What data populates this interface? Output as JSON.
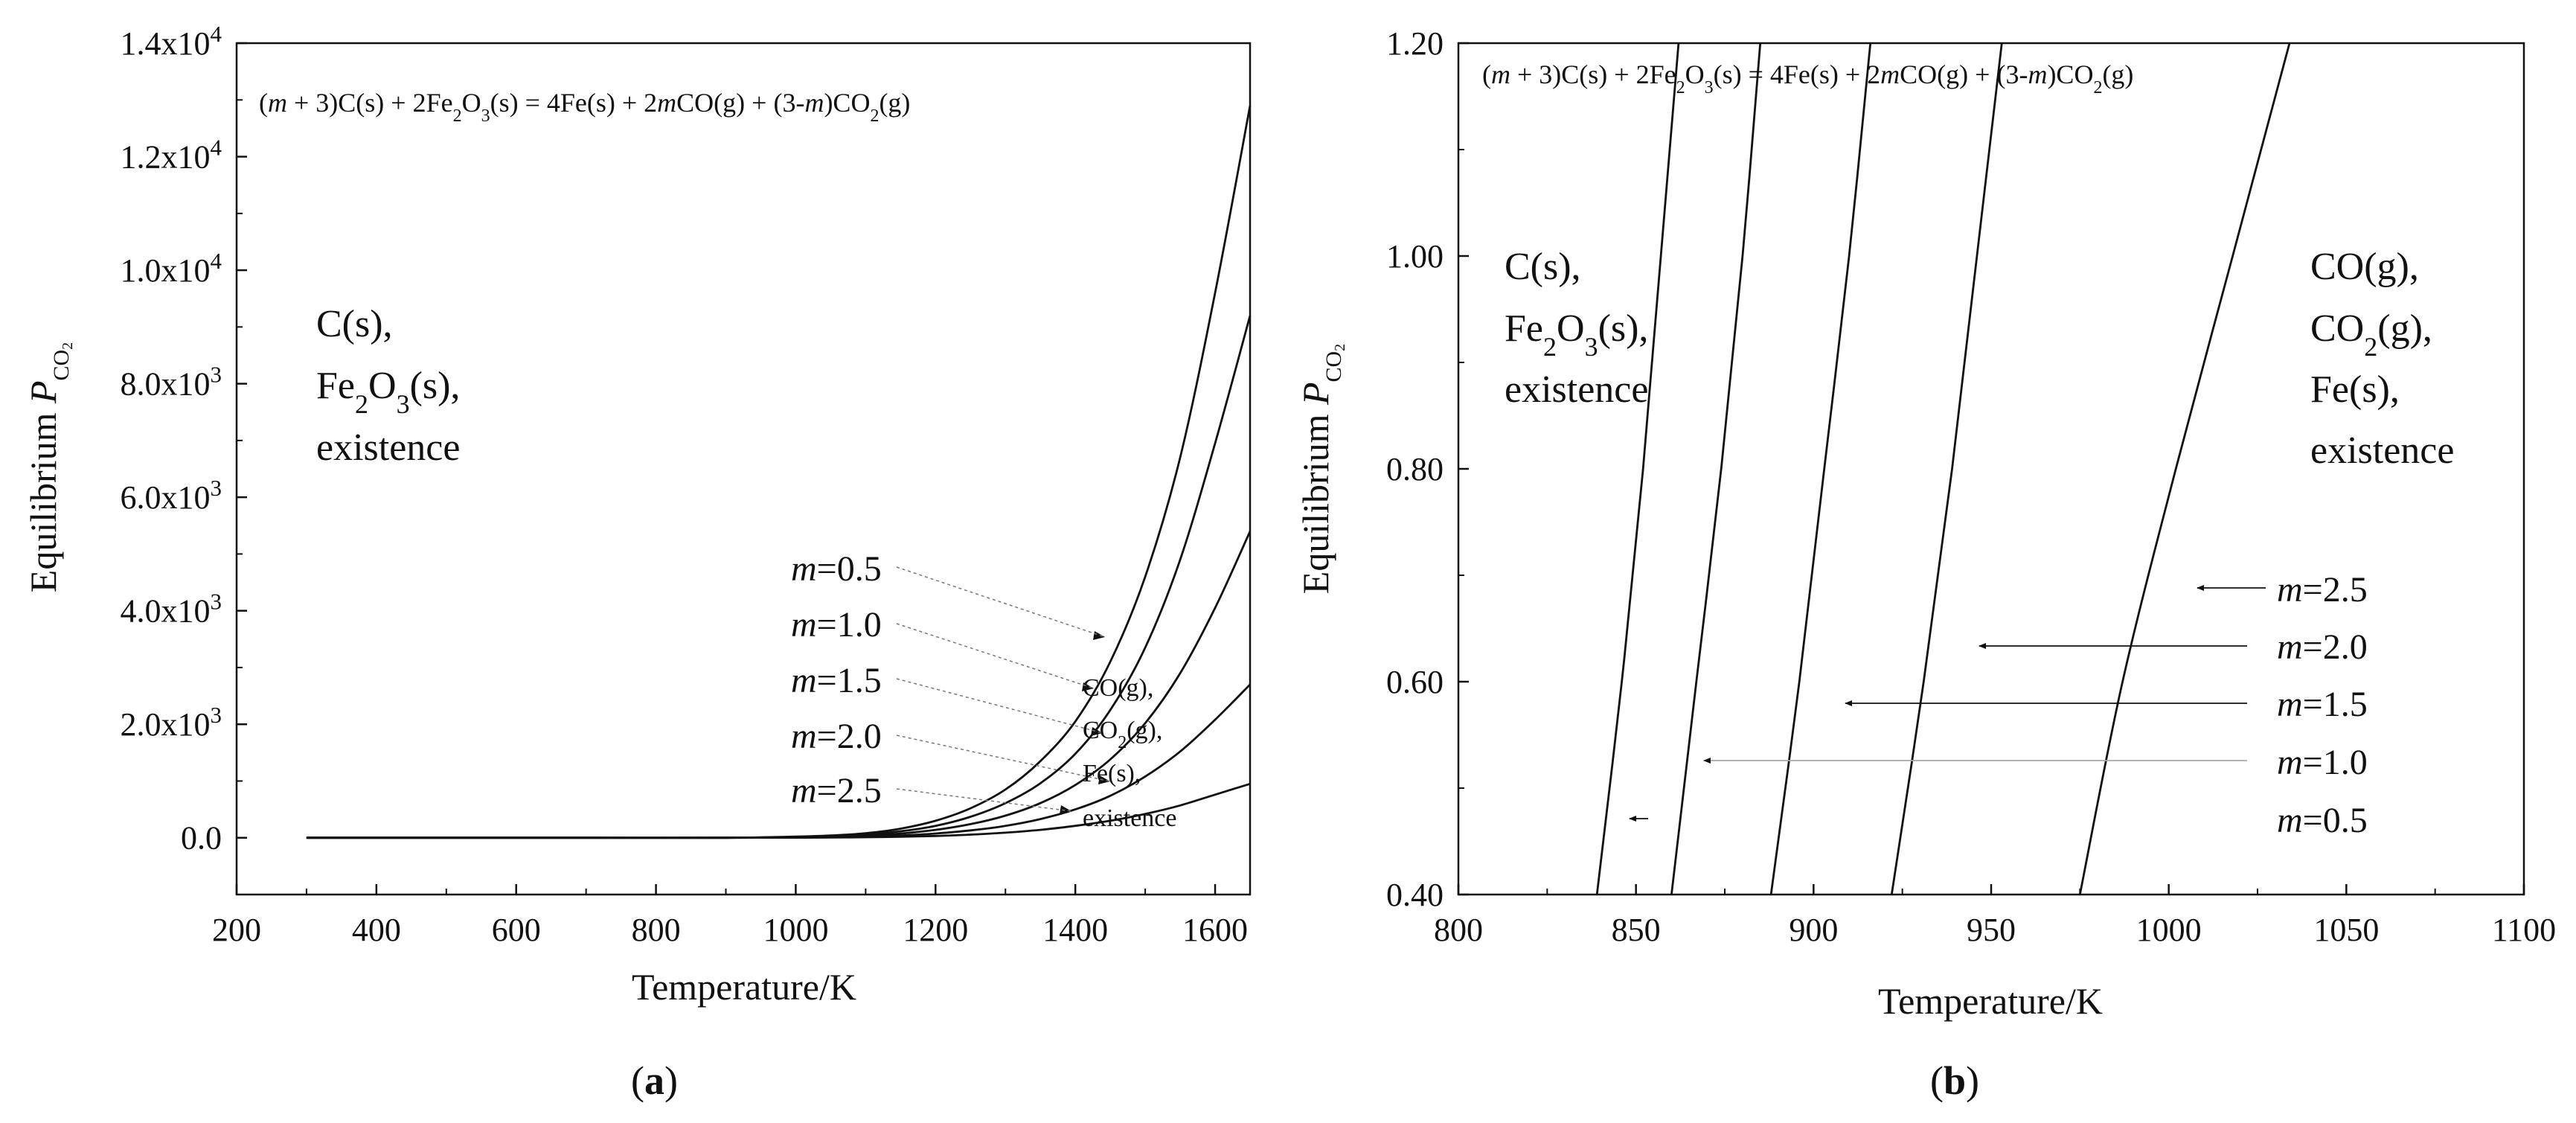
{
  "chart_data": [
    {
      "type": "line",
      "panel_label": "a",
      "title": "(m + 3)C(s) + 2Fe2O3(s) = 4Fe(s) + 2mCO(g) + (3-m)CO2(g)",
      "xlabel": "Temperature/K",
      "ylabel": "Equilibrium P_CO2",
      "xlim": [
        200,
        1650
      ],
      "ylim": [
        -1000,
        14000
      ],
      "x_ticks": [
        "200",
        "400",
        "600",
        "800",
        "1000",
        "1200",
        "1400",
        "1600"
      ],
      "y_ticks": [
        "0.0",
        "2.0x10^3",
        "4.0x10^3",
        "6.0x10^3",
        "8.0x10^3",
        "1.0x10^4",
        "1.2x10^4",
        "1.4x10^4"
      ],
      "x": [
        300,
        500,
        700,
        900,
        1000,
        1050,
        1100,
        1150,
        1200,
        1250,
        1300,
        1350,
        1400,
        1450,
        1500,
        1550,
        1600,
        1650
      ],
      "series": [
        {
          "name": "m=0.5",
          "values": [
            0,
            0,
            0,
            0,
            20,
            40,
            80,
            160,
            300,
            520,
            850,
            1350,
            2050,
            3100,
            4600,
            6700,
            9600,
            12900
          ]
        },
        {
          "name": "m=1.0",
          "values": [
            0,
            0,
            0,
            0,
            15,
            30,
            60,
            115,
            210,
            370,
            610,
            960,
            1480,
            2250,
            3350,
            4900,
            6950,
            9200
          ]
        },
        {
          "name": "m=1.5",
          "values": [
            0,
            0,
            0,
            0,
            10,
            20,
            40,
            75,
            140,
            240,
            390,
            610,
            930,
            1380,
            2020,
            2900,
            4050,
            5400
          ]
        },
        {
          "name": "m=2.0",
          "values": [
            0,
            0,
            0,
            0,
            5,
            10,
            22,
            40,
            75,
            130,
            210,
            330,
            500,
            740,
            1080,
            1520,
            2080,
            2700
          ]
        },
        {
          "name": "m=2.5",
          "values": [
            0,
            0,
            0,
            0,
            2,
            5,
            10,
            18,
            32,
            55,
            90,
            140,
            210,
            300,
            420,
            570,
            760,
            950
          ]
        }
      ],
      "series_labels": [
        "m=0.5",
        "m=1.0",
        "m=1.5",
        "m=2.0",
        "m=2.5"
      ],
      "region_left": [
        "C(s),",
        "Fe2O3(s),",
        "existence"
      ],
      "region_right": [
        "CO(g),",
        "CO2(g),",
        "Fe(s),",
        "existence"
      ]
    },
    {
      "type": "line",
      "panel_label": "b",
      "title": "(m + 3)C(s) + 2Fe2O3(s) = 4Fe(s) + 2mCO(g) + (3-m)CO2(g)",
      "xlabel": "Temperature/K",
      "ylabel": "Equilibrium P_CO2",
      "xlim": [
        800,
        1100
      ],
      "ylim": [
        0.4,
        1.2
      ],
      "x_ticks": [
        "800",
        "850",
        "900",
        "950",
        "1000",
        "1050",
        "1100"
      ],
      "y_ticks": [
        "0.40",
        "0.60",
        "0.80",
        "1.00",
        "1.20"
      ],
      "series": [
        {
          "name": "m=0.5",
          "x": [
            839,
            846,
            852,
            857,
            862
          ],
          "values": [
            0.4,
            0.6,
            0.8,
            1.0,
            1.2
          ]
        },
        {
          "name": "m=1.0",
          "x": [
            860,
            867,
            874,
            880,
            885
          ],
          "values": [
            0.4,
            0.6,
            0.8,
            1.0,
            1.2
          ]
        },
        {
          "name": "m=1.5",
          "x": [
            888,
            896,
            903,
            910,
            916
          ],
          "values": [
            0.4,
            0.6,
            0.8,
            1.0,
            1.2
          ]
        },
        {
          "name": "m=2.0",
          "x": [
            922,
            931,
            939,
            946,
            953
          ],
          "values": [
            0.4,
            0.6,
            0.8,
            1.0,
            1.2
          ]
        },
        {
          "name": "m=2.5",
          "x": [
            975,
            987,
            1002,
            1018,
            1034
          ],
          "values": [
            0.4,
            0.6,
            0.8,
            1.0,
            1.2
          ]
        }
      ],
      "series_labels": [
        "m=2.5",
        "m=2.0",
        "m=1.5",
        "m=1.0",
        "m=0.5"
      ],
      "region_left": [
        "C(s),",
        "Fe2O3(s),",
        "existence"
      ],
      "region_right": [
        "CO(g),",
        "CO2(g),",
        "Fe(s),",
        "existence"
      ]
    }
  ]
}
